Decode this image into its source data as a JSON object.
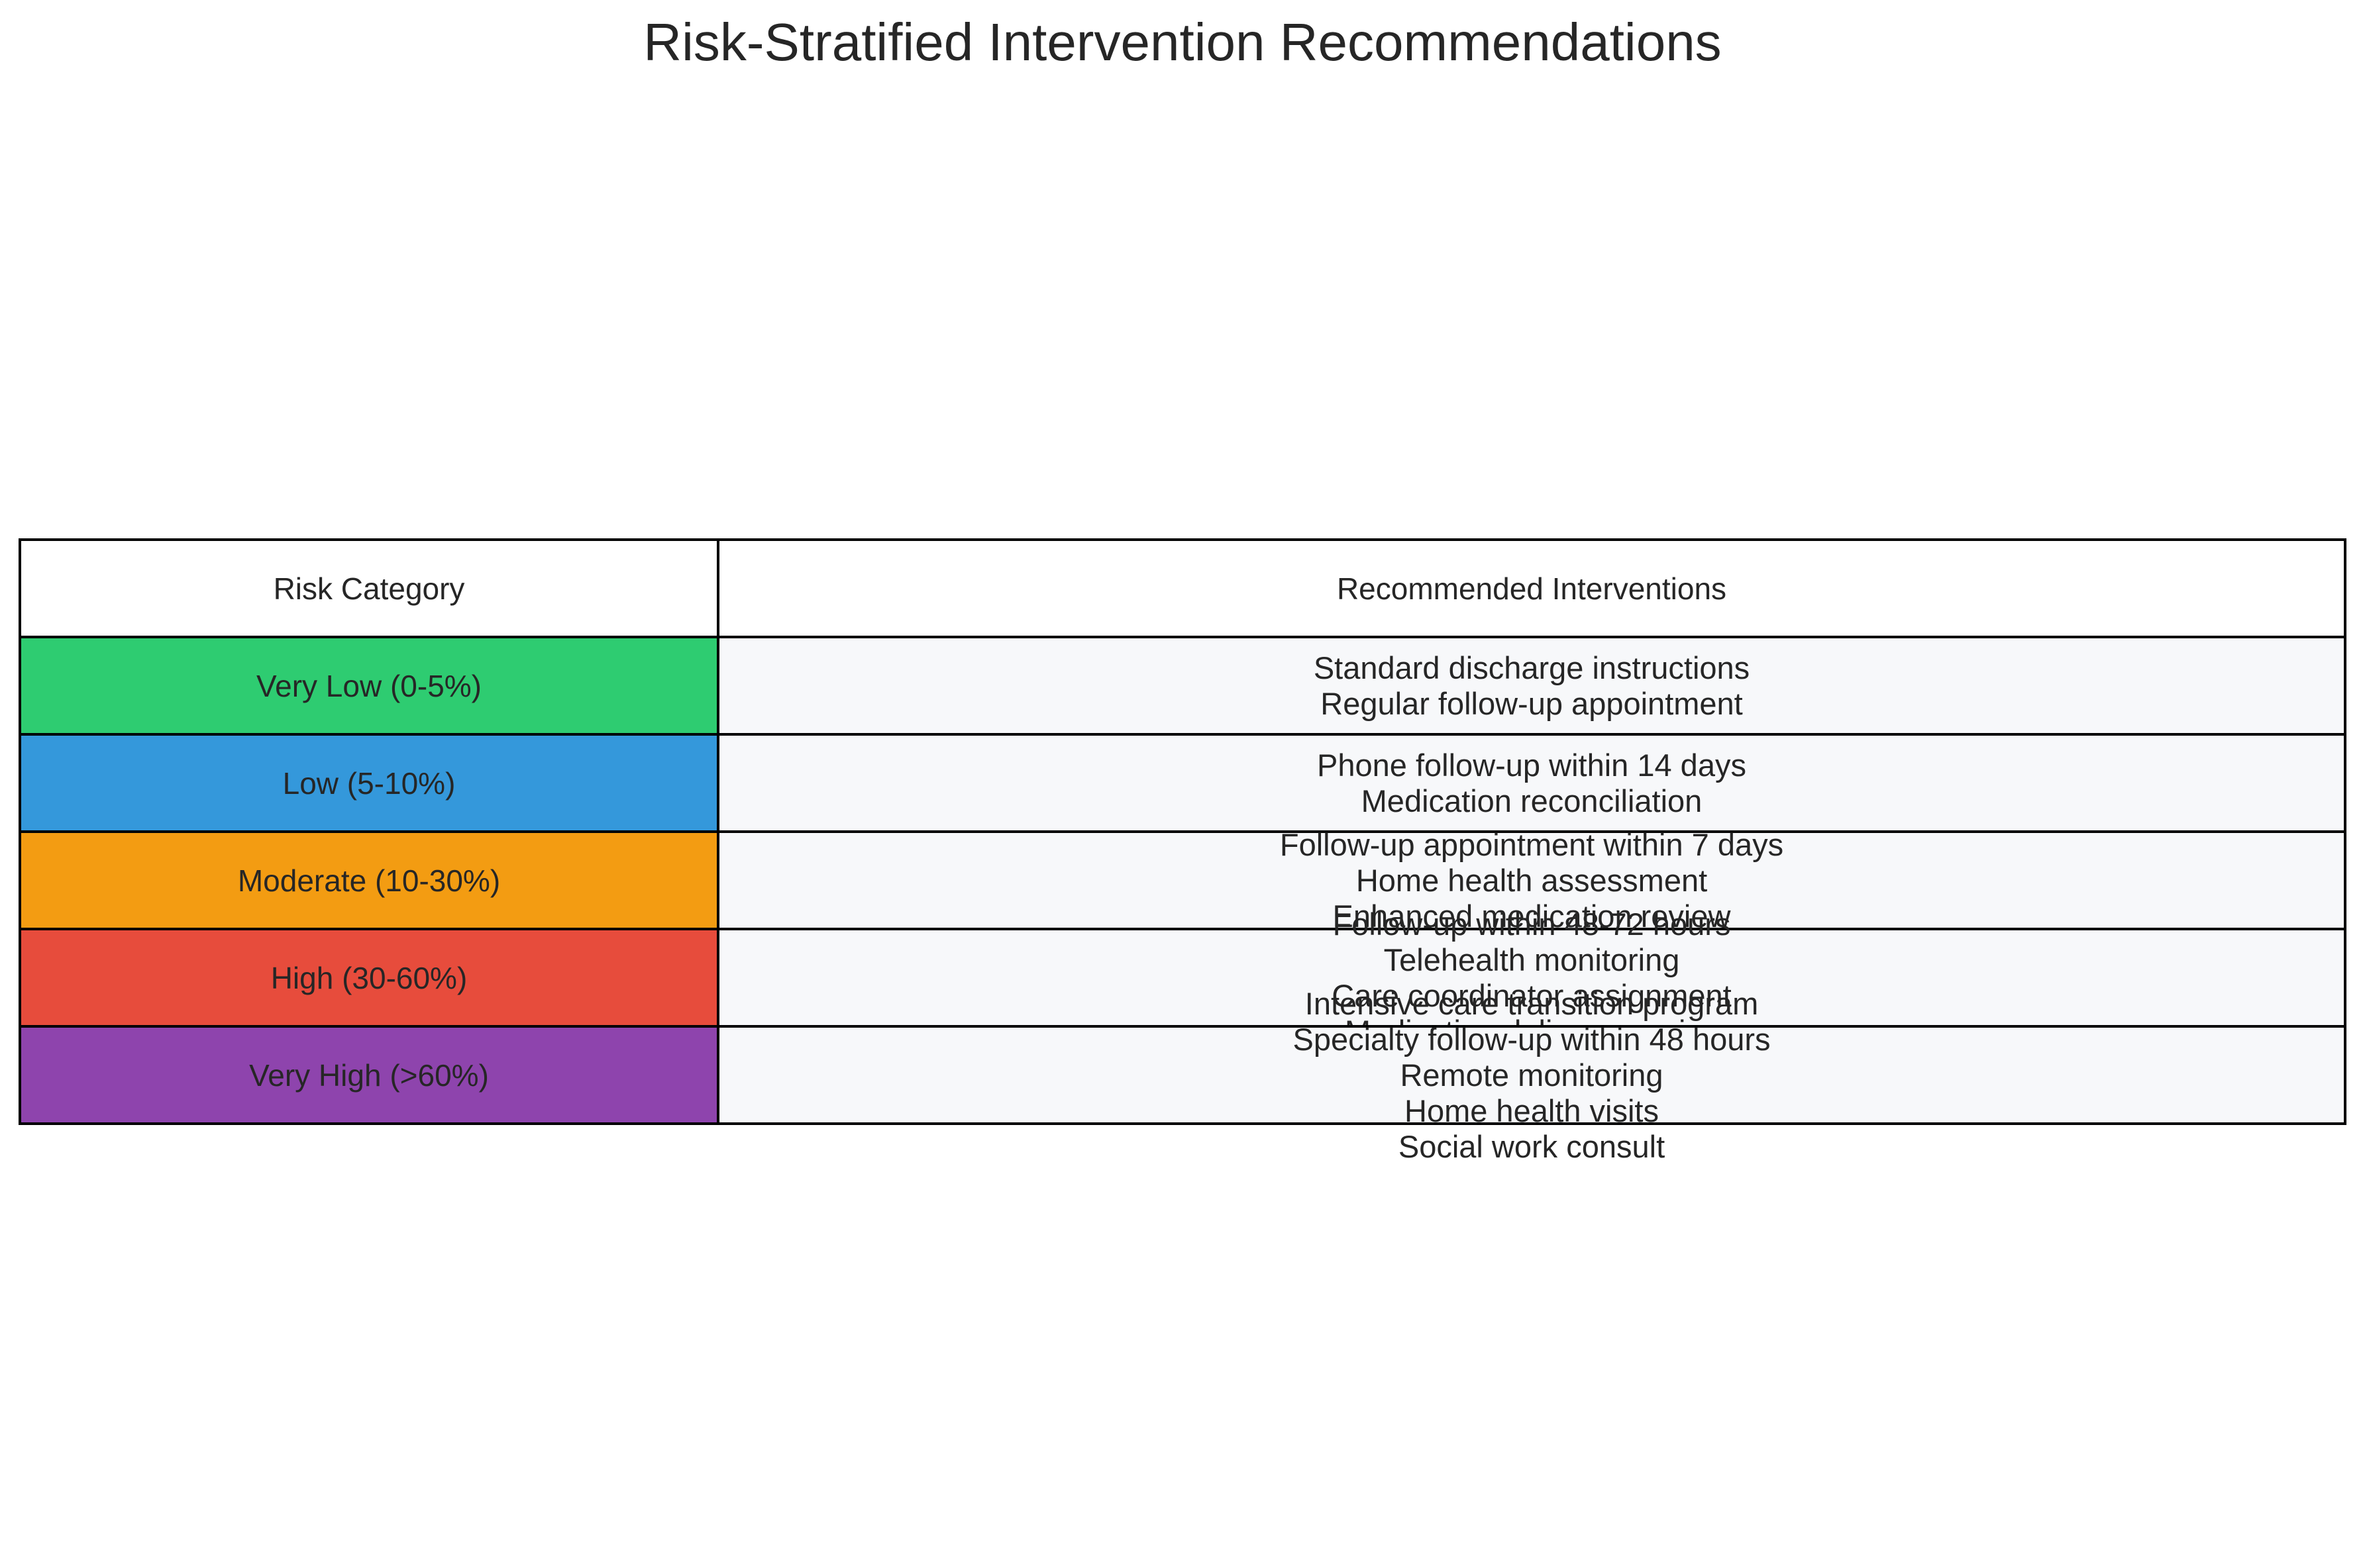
{
  "title": "Risk-Stratified Intervention Recommendations",
  "chart_data": {
    "type": "table",
    "columns": [
      "Risk Category",
      "Recommended Interventions"
    ],
    "colors": {
      "header_bg": "#ffffff",
      "interventions_bg": "#f7f8fa",
      "border": "#000000"
    },
    "rows": [
      {
        "category": "Very Low (0-5%)",
        "color": "#2ecc71",
        "interventions": [
          "Standard discharge instructions",
          "Regular follow-up appointment"
        ]
      },
      {
        "category": "Low (5-10%)",
        "color": "#3498db",
        "interventions": [
          "Phone follow-up within 14 days",
          "Medication reconciliation"
        ]
      },
      {
        "category": "Moderate (10-30%)",
        "color": "#f39c12",
        "interventions": [
          "Follow-up appointment within 7 days",
          "Home health assessment",
          "Enhanced medication review"
        ]
      },
      {
        "category": "High (30-60%)",
        "color": "#e74c3c",
        "interventions": [
          "Follow-up within 48-72 hours",
          "Telehealth monitoring",
          "Care coordinator assignment",
          "Medication delivery service"
        ]
      },
      {
        "category": "Very High (>60%)",
        "color": "#8e44ad",
        "interventions": [
          "Intensive care transition program",
          "Specialty follow-up within 48 hours",
          "Remote monitoring",
          "Home health visits",
          "Social work consult"
        ]
      }
    ]
  }
}
